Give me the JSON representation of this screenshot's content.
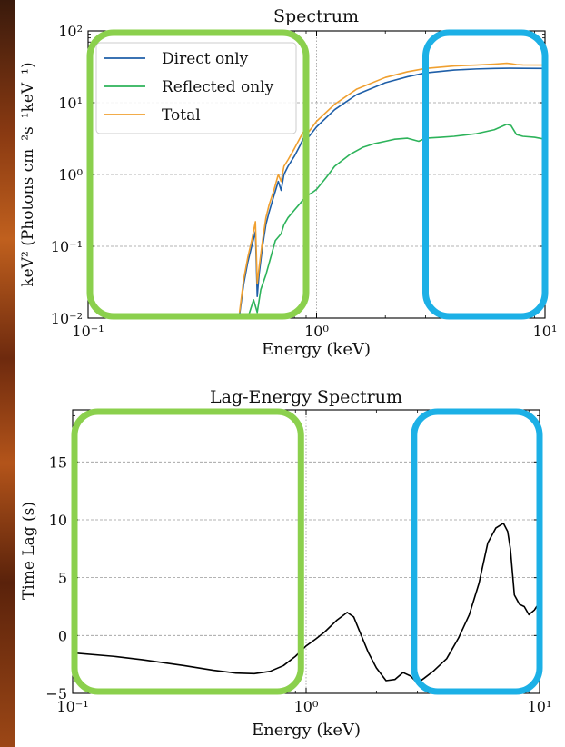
{
  "chart_data": [
    {
      "type": "line",
      "title": "Spectrum",
      "xlabel": "Energy (keV)",
      "ylabel": "keV² (Photons cm⁻²s⁻¹keV⁻¹)",
      "xscale": "log",
      "yscale": "log",
      "xlim": [
        0.1,
        10
      ],
      "ylim": [
        0.01,
        100
      ],
      "x_ticks": [
        "10⁻¹",
        "10⁰",
        "10¹"
      ],
      "y_ticks": [
        "10⁻²",
        "10⁻¹",
        "10⁰",
        "10¹",
        "10²"
      ],
      "grid": "horizontal dashed at decades; vertical dotted at 1 keV",
      "legend": "top-left",
      "series": [
        {
          "name": "Direct only",
          "color": "#1f5fa8",
          "x": [
            0.46,
            0.48,
            0.5,
            0.52,
            0.54,
            0.55,
            0.56,
            0.58,
            0.6,
            0.62,
            0.65,
            0.68,
            0.7,
            0.72,
            0.75,
            0.8,
            0.85,
            0.88,
            0.9,
            1.0,
            1.2,
            1.5,
            2.0,
            2.5,
            3.0,
            4.0,
            5.0,
            6.0,
            7.0,
            8.0,
            10.0
          ],
          "y": [
            0.011,
            0.03,
            0.06,
            0.1,
            0.16,
            0.02,
            0.04,
            0.1,
            0.2,
            0.3,
            0.5,
            0.8,
            0.6,
            1.0,
            1.3,
            1.8,
            2.6,
            3.3,
            3.0,
            4.6,
            8.0,
            13.0,
            19.0,
            23.0,
            26.0,
            28.5,
            29.5,
            30.0,
            30.2,
            30.1,
            30.0
          ]
        },
        {
          "name": "Reflected only",
          "color": "#2db35a",
          "x": [
            0.5,
            0.53,
            0.55,
            0.57,
            0.6,
            0.63,
            0.66,
            0.7,
            0.72,
            0.75,
            0.8,
            0.85,
            0.9,
            0.95,
            1.0,
            1.1,
            1.2,
            1.4,
            1.6,
            1.8,
            2.0,
            2.2,
            2.5,
            2.8,
            3.0,
            3.5,
            4.0,
            5.0,
            6.0,
            6.8,
            7.1,
            7.5,
            8.0,
            9.0,
            10.0
          ],
          "y": [
            0.01,
            0.018,
            0.012,
            0.025,
            0.04,
            0.07,
            0.12,
            0.15,
            0.2,
            0.25,
            0.32,
            0.4,
            0.5,
            0.55,
            0.62,
            0.9,
            1.3,
            1.9,
            2.4,
            2.7,
            2.9,
            3.1,
            3.2,
            2.9,
            3.2,
            3.3,
            3.4,
            3.7,
            4.2,
            5.0,
            4.8,
            3.6,
            3.4,
            3.3,
            3.1
          ]
        },
        {
          "name": "Total",
          "color": "#f0a030",
          "x": [
            0.46,
            0.48,
            0.5,
            0.52,
            0.54,
            0.55,
            0.56,
            0.58,
            0.6,
            0.62,
            0.65,
            0.68,
            0.7,
            0.72,
            0.75,
            0.8,
            0.85,
            0.88,
            0.9,
            1.0,
            1.2,
            1.5,
            2.0,
            2.5,
            3.0,
            4.0,
            5.0,
            6.0,
            6.8,
            7.1,
            7.5,
            8.0,
            10.0
          ],
          "y": [
            0.012,
            0.035,
            0.07,
            0.12,
            0.22,
            0.03,
            0.05,
            0.12,
            0.25,
            0.38,
            0.6,
            1.0,
            0.8,
            1.3,
            1.6,
            2.3,
            3.3,
            4.0,
            3.5,
            5.5,
            9.5,
            15.5,
            22.5,
            27.0,
            30.0,
            32.5,
            33.5,
            34.5,
            35.5,
            35.0,
            34.0,
            33.6,
            33.5
          ]
        }
      ],
      "highlight_regions": [
        {
          "color": "#8bd04d",
          "x_range": [
            0.1,
            0.9
          ]
        },
        {
          "color": "#1cb0e6",
          "x_range": [
            3.0,
            10.0
          ]
        }
      ]
    },
    {
      "type": "line",
      "title": "Lag-Energy Spectrum",
      "xlabel": "Energy (keV)",
      "ylabel": "Time Lag (s)",
      "xscale": "log",
      "xlim": [
        0.1,
        10
      ],
      "ylim": [
        -5,
        19.5
      ],
      "x_ticks": [
        "10⁻¹",
        "10⁰",
        "10¹"
      ],
      "y_ticks": [
        "−5",
        "0",
        "5",
        "10",
        "15"
      ],
      "grid": "horizontal dashed; vertical dotted at 1 keV",
      "series": [
        {
          "color": "#000000",
          "x": [
            0.1,
            0.15,
            0.2,
            0.3,
            0.4,
            0.5,
            0.6,
            0.7,
            0.8,
            0.9,
            1.0,
            1.1,
            1.2,
            1.35,
            1.5,
            1.6,
            1.7,
            1.85,
            2.0,
            2.2,
            2.4,
            2.6,
            2.8,
            3.0,
            3.2,
            3.5,
            4.0,
            4.5,
            5.0,
            5.5,
            6.0,
            6.5,
            7.0,
            7.3,
            7.5,
            7.8,
            8.2,
            8.6,
            9.0,
            9.5,
            10.0
          ],
          "y": [
            -1.5,
            -1.8,
            -2.1,
            -2.6,
            -3.0,
            -3.25,
            -3.3,
            -3.1,
            -2.6,
            -1.8,
            -0.9,
            -0.3,
            0.3,
            1.3,
            2.0,
            1.6,
            0.3,
            -1.5,
            -2.8,
            -3.9,
            -3.8,
            -3.2,
            -3.5,
            -4.1,
            -3.7,
            -3.1,
            -2.0,
            -0.2,
            1.8,
            4.5,
            8.0,
            9.3,
            9.7,
            9.0,
            7.5,
            3.5,
            2.7,
            2.5,
            1.8,
            2.2,
            2.9
          ]
        }
      ],
      "highlight_regions": [
        {
          "color": "#8bd04d",
          "x_range": [
            0.1,
            0.95
          ]
        },
        {
          "color": "#1cb0e6",
          "x_range": [
            2.9,
            10.0
          ]
        }
      ]
    }
  ]
}
